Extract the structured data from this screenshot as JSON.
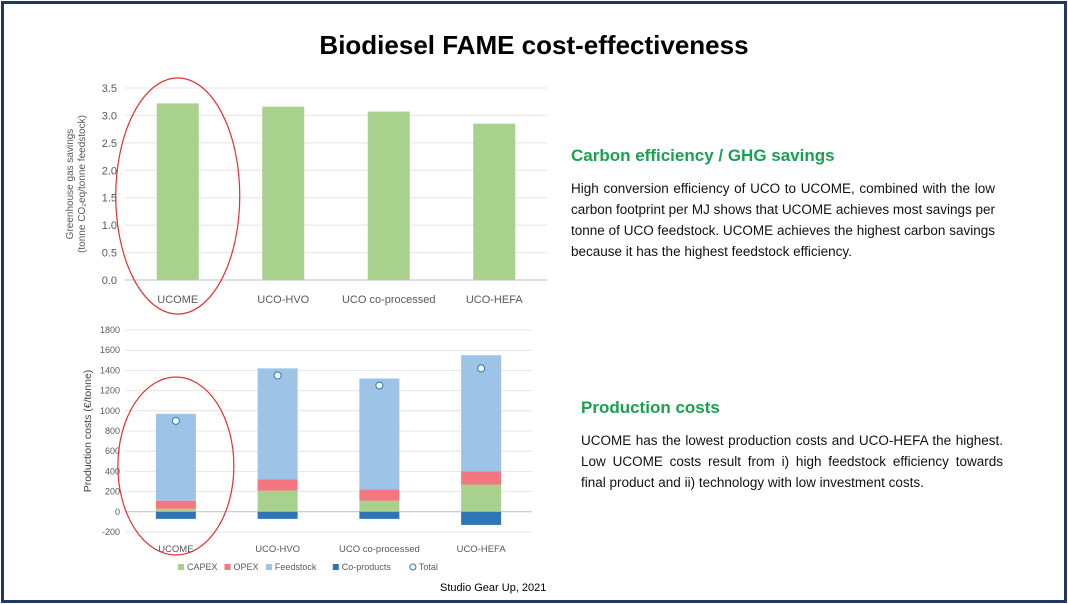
{
  "title": "Biodiesel FAME cost-effectiveness",
  "section1": {
    "heading": "Carbon efficiency / GHG savings",
    "body": "High conversion efficiency of UCO to UCOME, combined with the low carbon footprint per MJ shows that UCOME achieves most savings per tonne of UCO feedstock. UCOME achieves the highest carbon savings because it has the highest feedstock efficiency."
  },
  "section2": {
    "heading": "Production costs",
    "body": "UCOME has the lowest production costs and UCO-HEFA the highest. Low UCOME costs result from i) high feedstock efficiency towards final product and ii) technology with low investment costs."
  },
  "credit": "Studio Gear Up, 2021",
  "colors": {
    "frame": "#1f3864",
    "heading": "#1aa050",
    "capex": "#a9d18e",
    "opex": "#f4777f",
    "feedstock": "#9dc3e6",
    "coproducts": "#2e75b6",
    "highlight_circle": "#e03030"
  },
  "chart_data": [
    {
      "type": "bar",
      "categories": [
        "UCOME",
        "UCO-HVO",
        "UCO co-processed",
        "UCO-HEFA"
      ],
      "values": [
        3.22,
        3.16,
        3.07,
        2.85
      ],
      "ylabel_line1": "Greenhouse gas savings",
      "ylabel_line2": "(tonne CO₂eq/tonne feedstock)",
      "ylim": [
        0,
        3.5
      ],
      "yticks": [
        "0.0",
        "0.5",
        "1.0",
        "1.5",
        "2.0",
        "2.5",
        "3.0",
        "3.5"
      ],
      "grid": true,
      "highlight": "UCOME"
    },
    {
      "type": "bar",
      "stacked": true,
      "categories": [
        "UCOME",
        "UCO-HVO",
        "UCO co-processed",
        "UCO-HEFA"
      ],
      "series": [
        {
          "name": "CAPEX",
          "values": [
            30,
            210,
            110,
            270
          ]
        },
        {
          "name": "OPEX",
          "values": [
            80,
            110,
            110,
            130
          ]
        },
        {
          "name": "Feedstock",
          "values": [
            860,
            1100,
            1100,
            1150
          ]
        },
        {
          "name": "Co-products",
          "values": [
            -70,
            -70,
            -70,
            -130
          ]
        }
      ],
      "total": {
        "name": "Total",
        "values": [
          900,
          1350,
          1250,
          1420
        ]
      },
      "ylabel": "Production costs (€/tonne)",
      "ylim": [
        -200,
        1800
      ],
      "yticks": [
        "-200",
        "0",
        "200",
        "400",
        "600",
        "800",
        "1000",
        "1200",
        "1400",
        "1600",
        "1800"
      ],
      "grid": true,
      "legend_position": "bottom",
      "highlight": "UCOME"
    }
  ]
}
